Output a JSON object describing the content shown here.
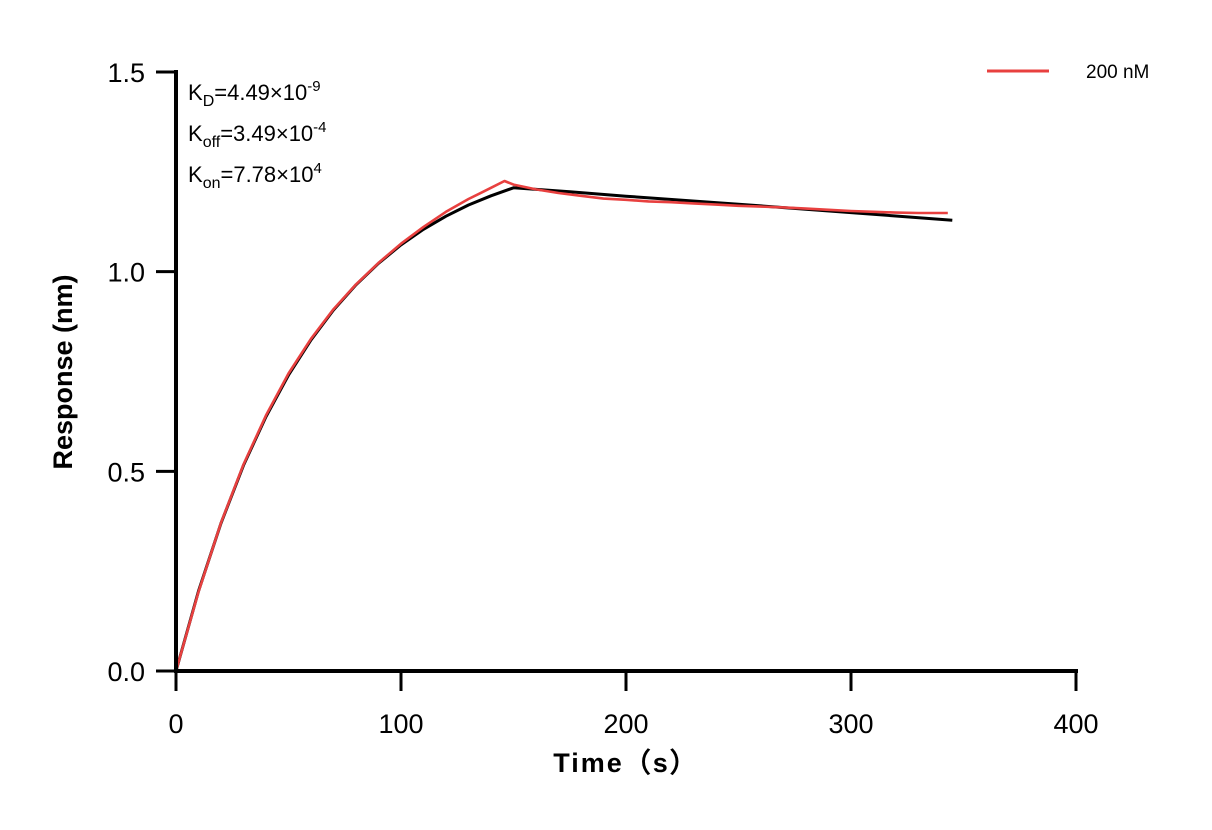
{
  "chart_data": {
    "type": "line",
    "xlabel": "Time（s）",
    "ylabel": "Response (nm)",
    "xlim": [
      0,
      400
    ],
    "ylim": [
      0,
      1.5
    ],
    "xticks": [
      "0",
      "100",
      "200",
      "300",
      "400"
    ],
    "yticks": [
      "0.0",
      "0.5",
      "1.0",
      "1.5"
    ],
    "grid": false,
    "legend_position": "top-right",
    "annotations": [
      {
        "base": "K",
        "sub": "D",
        "eq": "=4.49×10",
        "sup": "-9"
      },
      {
        "base": "K",
        "sub": "off",
        "eq": "=3.49×10",
        "sup": "-4"
      },
      {
        "base": "K",
        "sub": "on",
        "eq": "=7.78×10",
        "sup": "4"
      }
    ],
    "series": [
      {
        "name": "200 nM",
        "color": "#e8403f",
        "x": [
          0,
          10,
          20,
          30,
          40,
          50,
          60,
          70,
          80,
          90,
          100,
          110,
          120,
          130,
          135,
          140,
          146,
          150,
          155,
          160,
          170,
          180,
          190,
          200,
          210,
          220,
          230,
          240,
          250,
          260,
          270,
          280,
          290,
          300,
          310,
          320,
          330,
          343
        ],
        "y": [
          0,
          0.198,
          0.371,
          0.517,
          0.64,
          0.745,
          0.832,
          0.906,
          0.968,
          1.022,
          1.07,
          1.112,
          1.15,
          1.182,
          1.196,
          1.21,
          1.227,
          1.218,
          1.212,
          1.206,
          1.197,
          1.19,
          1.183,
          1.18,
          1.176,
          1.174,
          1.171,
          1.168,
          1.165,
          1.163,
          1.161,
          1.158,
          1.155,
          1.152,
          1.15,
          1.148,
          1.147,
          1.147
        ]
      },
      {
        "color": "#000000",
        "x": [
          0,
          10,
          20,
          30,
          40,
          50,
          60,
          70,
          80,
          90,
          100,
          110,
          120,
          130,
          140,
          150,
          175,
          200,
          250,
          300,
          345
        ],
        "y": [
          0,
          0.2,
          0.37,
          0.515,
          0.637,
          0.741,
          0.829,
          0.904,
          0.967,
          1.021,
          1.067,
          1.106,
          1.139,
          1.167,
          1.19,
          1.21,
          1.2,
          1.189,
          1.169,
          1.148,
          1.129
        ]
      }
    ]
  }
}
